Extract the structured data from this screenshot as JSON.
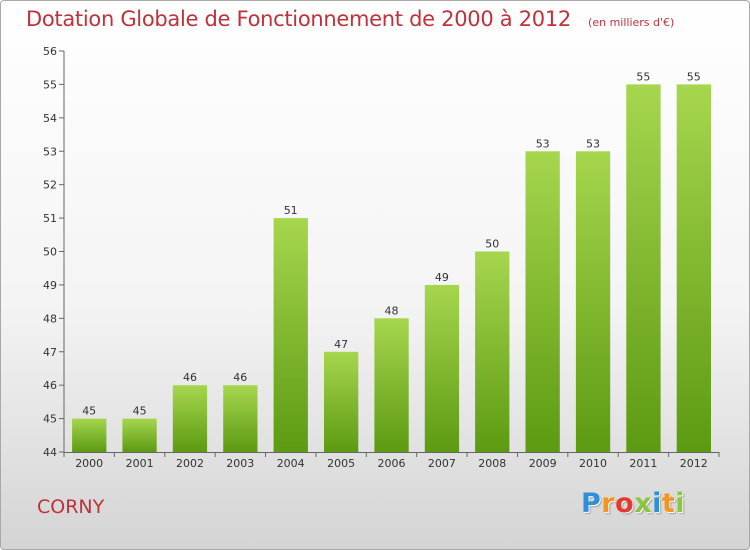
{
  "chart_data": {
    "type": "bar",
    "title": "Dotation Globale de Fonctionnement de 2000 à 2012",
    "subtitle": "(en milliers d'€)",
    "categories": [
      "2000",
      "2001",
      "2002",
      "2003",
      "2004",
      "2005",
      "2006",
      "2007",
      "2008",
      "2009",
      "2010",
      "2011",
      "2012"
    ],
    "values": [
      45,
      45,
      46,
      46,
      51,
      47,
      48,
      49,
      50,
      53,
      53,
      55,
      55
    ],
    "ylim": [
      44,
      56
    ],
    "yticks": [
      44,
      45,
      46,
      47,
      48,
      49,
      50,
      51,
      52,
      53,
      54,
      55,
      56
    ],
    "grid": false,
    "data_labels": true
  },
  "commune": "CORNY",
  "brand": {
    "letters": [
      "P",
      "r",
      "o",
      "x",
      "i",
      "t",
      "i"
    ],
    "colors": [
      "#2f8fd8",
      "#f7941d",
      "#e8372c",
      "#8cc63f",
      "#2f8fd8",
      "#f7941d",
      "#8cc63f"
    ]
  },
  "colors": {
    "bar_top": "#a6d64e",
    "bar_bottom": "#5c9a12",
    "text_accent": "#c0313a"
  }
}
